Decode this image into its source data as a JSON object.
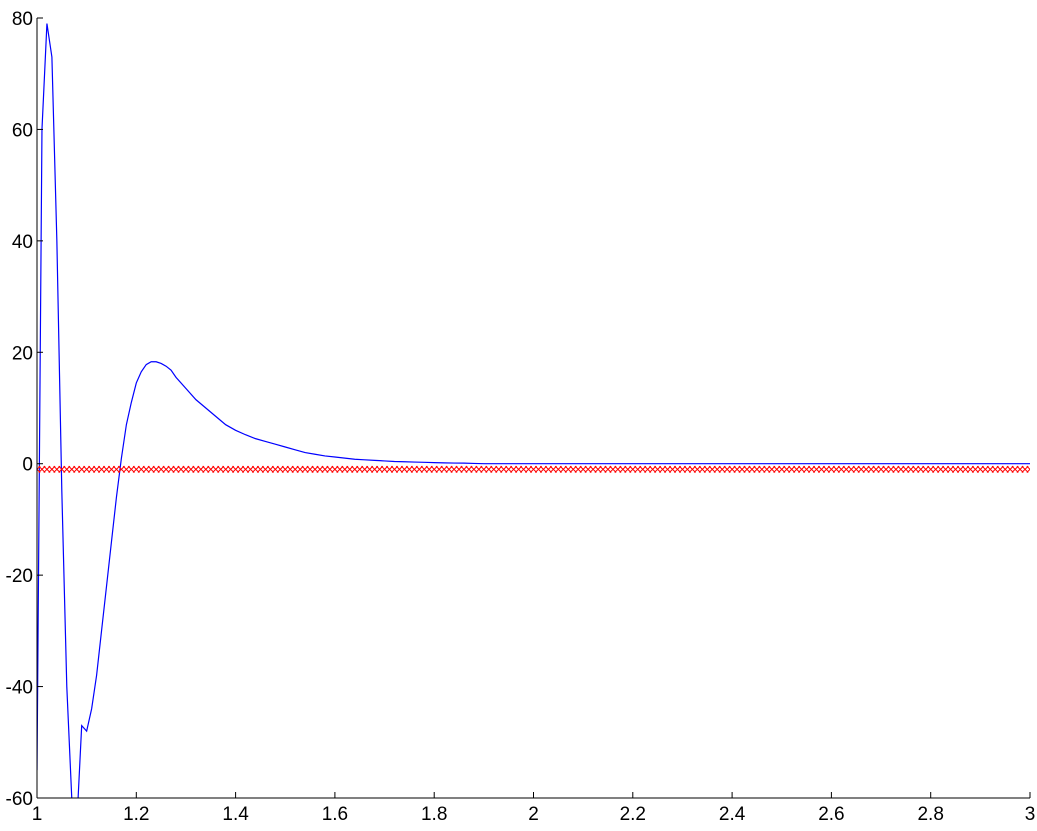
{
  "chart_data": {
    "type": "line",
    "title": "",
    "xlabel": "",
    "ylabel": "",
    "xlim": [
      1,
      3
    ],
    "ylim": [
      -60,
      80
    ],
    "grid": false,
    "legend": "none",
    "x_ticks": [
      1,
      1.2,
      1.4,
      1.6,
      1.8,
      2,
      2.2,
      2.4,
      2.6,
      2.8,
      3
    ],
    "x_tick_labels": [
      "1",
      "1.2",
      "1.4",
      "1.6",
      "1.8",
      "2",
      "2.2",
      "2.4",
      "2.6",
      "2.8",
      "3"
    ],
    "y_ticks": [
      -60,
      -40,
      -20,
      0,
      20,
      40,
      60,
      80
    ],
    "y_tick_labels": [
      "-60",
      "-40",
      "-20",
      "0",
      "20",
      "40",
      "60",
      "80"
    ],
    "series": [
      {
        "color": "#0000ff",
        "style": "line",
        "x": [
          1.0,
          1.01,
          1.02,
          1.03,
          1.04,
          1.05,
          1.06,
          1.07,
          1.08,
          1.09,
          1.1,
          1.11,
          1.12,
          1.13,
          1.14,
          1.15,
          1.16,
          1.17,
          1.18,
          1.19,
          1.2,
          1.21,
          1.22,
          1.23,
          1.24,
          1.25,
          1.26,
          1.27,
          1.28,
          1.3,
          1.32,
          1.34,
          1.36,
          1.38,
          1.4,
          1.42,
          1.44,
          1.46,
          1.48,
          1.5,
          1.52,
          1.54,
          1.56,
          1.58,
          1.6,
          1.62,
          1.64,
          1.66,
          1.68,
          1.7,
          1.72,
          1.74,
          1.76,
          1.78,
          1.8,
          1.82,
          1.84,
          1.86,
          1.88,
          1.9,
          2.0,
          2.2,
          2.4,
          2.6,
          2.8,
          3.0
        ],
        "y": [
          -55,
          60,
          79,
          73,
          40,
          -5,
          -40,
          -60,
          -65,
          -47,
          -48,
          -44,
          -38,
          -30,
          -22,
          -14,
          -6,
          1,
          7,
          11,
          14.5,
          16.5,
          17.8,
          18.3,
          18.3,
          18,
          17.5,
          16.8,
          15.5,
          13.5,
          11.5,
          10,
          8.5,
          7,
          6,
          5.2,
          4.5,
          4,
          3.5,
          3,
          2.5,
          2,
          1.7,
          1.4,
          1.2,
          1,
          0.8,
          0.7,
          0.6,
          0.5,
          0.4,
          0.35,
          0.3,
          0.25,
          0.2,
          0.15,
          0.12,
          0.1,
          0.05,
          0,
          0,
          0,
          0,
          0,
          0,
          0
        ]
      },
      {
        "color": "#ff0000",
        "style": "markers-x",
        "x_start": 1,
        "x_end": 3,
        "x_step": 0.01,
        "y": -1
      }
    ]
  }
}
